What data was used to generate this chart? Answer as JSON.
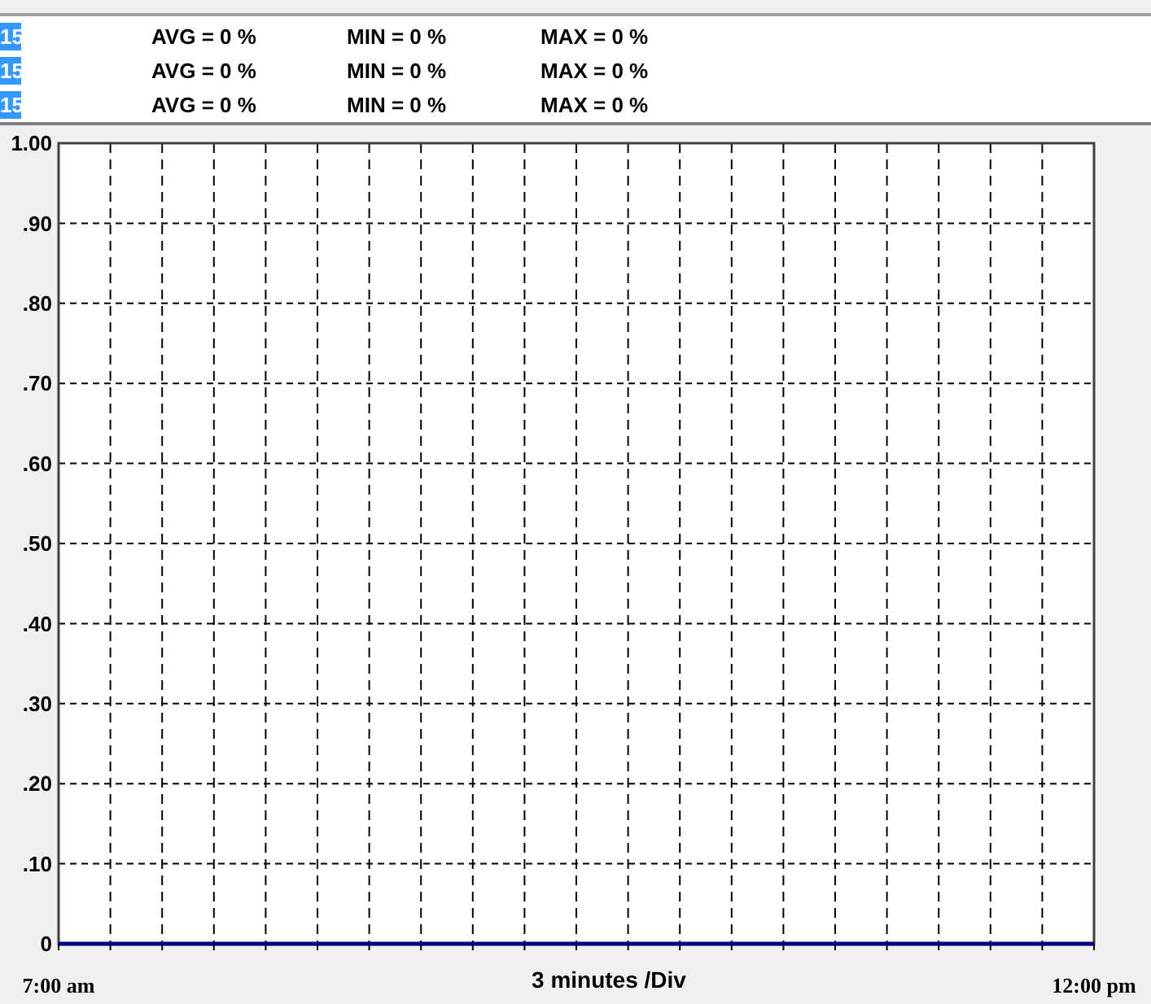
{
  "chart_data": {
    "type": "line",
    "xlabel": "3 minutes /Div",
    "annotations": [
      "15",
      "AVG = 0 %",
      "MIN = 0 %",
      "MAX = 0 %",
      "15",
      "AVG = 0 %",
      "MIN = 0 %",
      "MAX = 0 %",
      "15",
      "AVG = 0 %",
      "MIN = 0 %",
      "MAX = 0 %"
    ],
    "x": [
      7,
      12
    ],
    "series": [
      {
        "color": "#000080",
        "values": [
          0,
          0
        ]
      }
    ],
    "xlim": [
      7,
      12
    ],
    "xticks": [
      {
        "value": 7,
        "label": "7:00 am"
      },
      {
        "value": 7.25,
        "label": null
      },
      {
        "value": 7.5,
        "label": null
      },
      {
        "value": 7.75,
        "label": null
      },
      {
        "value": 8,
        "label": null
      },
      {
        "value": 8.25,
        "label": null
      },
      {
        "value": 8.5,
        "label": null
      },
      {
        "value": 8.75,
        "label": null
      },
      {
        "value": 9,
        "label": null
      },
      {
        "value": 9.25,
        "label": null
      },
      {
        "value": 9.5,
        "label": null
      },
      {
        "value": 9.75,
        "label": null
      },
      {
        "value": 10,
        "label": null
      },
      {
        "value": 10.25,
        "label": null
      },
      {
        "value": 10.5,
        "label": null
      },
      {
        "value": 10.75,
        "label": null
      },
      {
        "value": 11,
        "label": null
      },
      {
        "value": 11.25,
        "label": null
      },
      {
        "value": 11.5,
        "label": null
      },
      {
        "value": 11.75,
        "label": null
      },
      {
        "value": 12,
        "label": "12:00 pm"
      }
    ],
    "ylim": [
      0,
      1
    ],
    "yticks": [
      0,
      {
        "value": 0.1,
        "label": ".10"
      },
      {
        "value": 0.2,
        "label": ".20"
      },
      {
        "value": 0.3,
        "label": ".30"
      },
      {
        "value": 0.4,
        "label": ".40"
      },
      {
        "value": 0.5,
        "label": ".50"
      },
      {
        "value": 0.6,
        "label": ".60"
      },
      {
        "value": 0.7,
        "label": ".70"
      },
      {
        "value": 0.8,
        "label": ".80"
      },
      {
        "value": 0.9,
        "label": ".90"
      },
      {
        "value": 1,
        "label": "1.00"
      }
    ],
    "grid": true,
    "line_style": "solid",
    "marker": "none"
  }
}
